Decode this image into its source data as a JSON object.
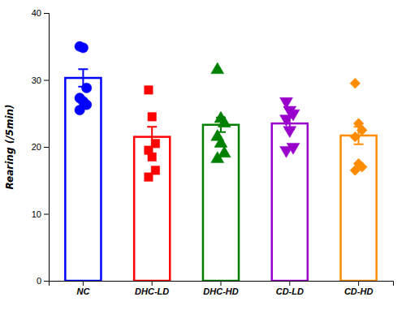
{
  "chart_data": {
    "type": "bar",
    "categories": [
      "NC",
      "DHC-LD",
      "DHC-HD",
      "CD-LD",
      "CD-HD"
    ],
    "ylabel": "Rearing (/5min)",
    "ylim": [
      0,
      40
    ],
    "yticks": [
      0,
      10,
      20,
      30,
      40
    ],
    "series": [
      {
        "type": "bar",
        "values": [
          30.3,
          21.5,
          23.3,
          23.5,
          21.7
        ],
        "errors": [
          1.3,
          1.5,
          1.1,
          0.85,
          1.3
        ],
        "colors": [
          "#0000FF",
          "#FF0000",
          "#008000",
          "#9900CC",
          "#FF8C00"
        ]
      },
      {
        "type": "scatter",
        "color": "#0000FF",
        "marker": "circle",
        "x": [
          "NC",
          "NC",
          "NC",
          "NC",
          "NC",
          "NC",
          "NC"
        ],
        "values": [
          35.0,
          34.8,
          28.8,
          27.3,
          26.8,
          26.3,
          25.5
        ]
      },
      {
        "type": "scatter",
        "color": "#FF0000",
        "marker": "square",
        "x": [
          "DHC-LD",
          "DHC-LD",
          "DHC-LD",
          "DHC-LD",
          "DHC-LD",
          "DHC-LD",
          "DHC-LD"
        ],
        "values": [
          28.5,
          24.5,
          20.5,
          19.5,
          18.5,
          16.5,
          15.5
        ]
      },
      {
        "type": "scatter",
        "color": "#008000",
        "marker": "triangle-up",
        "x": [
          "DHC-HD",
          "DHC-HD",
          "DHC-HD",
          "DHC-HD",
          "DHC-HD",
          "DHC-HD",
          "DHC-HD"
        ],
        "values": [
          31.5,
          24.2,
          23.5,
          21.5,
          20.5,
          19.0,
          18.2
        ]
      },
      {
        "type": "scatter",
        "color": "#9900CC",
        "marker": "triangle-down",
        "x": [
          "CD-LD",
          "CD-LD",
          "CD-LD",
          "CD-LD",
          "CD-LD",
          "CD-LD",
          "CD-LD"
        ],
        "values": [
          26.8,
          25.5,
          25.0,
          24.2,
          22.5,
          20.0,
          19.5
        ]
      },
      {
        "type": "scatter",
        "color": "#FF8C00",
        "marker": "diamond",
        "x": [
          "CD-HD",
          "CD-HD",
          "CD-HD",
          "CD-HD",
          "CD-HD",
          "CD-HD",
          "CD-HD"
        ],
        "values": [
          29.5,
          23.5,
          22.5,
          21.5,
          17.5,
          17.0,
          16.5
        ]
      }
    ]
  }
}
